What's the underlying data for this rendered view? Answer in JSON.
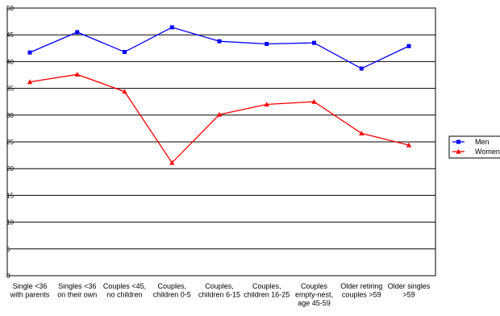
{
  "chart_data": {
    "type": "line",
    "title": "",
    "xlabel": "",
    "ylabel": "",
    "ylim": [
      0,
      50
    ],
    "yticks": [
      0,
      5,
      10,
      15,
      20,
      25,
      30,
      35,
      40,
      45,
      50
    ],
    "grid": "horizontal",
    "legend": "right",
    "categories": [
      [
        "Single <36",
        "with parents"
      ],
      [
        "Singles <36",
        "on their own"
      ],
      [
        "Couples <45,",
        "no children"
      ],
      [
        "Couples,",
        "children 0-5"
      ],
      [
        "Couples,",
        "children 6-15"
      ],
      [
        "Couples,",
        "children 16-25"
      ],
      [
        "Couples",
        "empty-nest,",
        "age 45-59"
      ],
      [
        "Older retiring",
        "couples >59"
      ],
      [
        "Older singles",
        ">59"
      ]
    ],
    "series": [
      {
        "name": "Men",
        "color": "#0000ff",
        "marker": "square",
        "values": [
          41.7,
          45.5,
          41.8,
          46.4,
          43.8,
          43.3,
          43.5,
          38.7,
          42.9
        ]
      },
      {
        "name": "Women",
        "color": "#ff0000",
        "marker": "triangle",
        "values": [
          36.2,
          37.6,
          34.4,
          21.1,
          30.1,
          32.0,
          32.5,
          26.6,
          24.4
        ]
      }
    ]
  }
}
